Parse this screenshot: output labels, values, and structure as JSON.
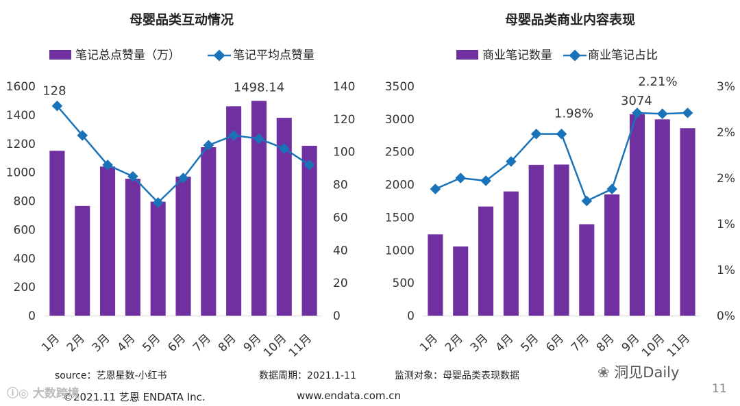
{
  "chart_data": [
    {
      "type": "bar+line",
      "title": "母婴品类互动情况",
      "categories": [
        "1月",
        "2月",
        "3月",
        "4月",
        "5月",
        "6月",
        "7月",
        "8月",
        "9月",
        "10月",
        "11月"
      ],
      "series": [
        {
          "name": "笔记总点赞量（万）",
          "kind": "bar",
          "axis": "left",
          "values": [
            1150,
            765,
            1040,
            955,
            795,
            970,
            1175,
            1460,
            1498.14,
            1380,
            1185
          ]
        },
        {
          "name": "笔记平均点赞量",
          "kind": "line",
          "axis": "right",
          "values": [
            128,
            110,
            92,
            85,
            69,
            84,
            104,
            110,
            108,
            102,
            92
          ]
        }
      ],
      "ylim_left": [
        0,
        1600
      ],
      "yticks_left": [
        "0",
        "200",
        "400",
        "600",
        "800",
        "1000",
        "1200",
        "1400",
        "1600"
      ],
      "ylim_right": [
        0,
        140
      ],
      "yticks_right": [
        "0",
        "20",
        "40",
        "60",
        "80",
        "100",
        "120",
        "140"
      ],
      "annotations": [
        {
          "series": 1,
          "index": 0,
          "label": "128"
        },
        {
          "series": 0,
          "index": 8,
          "label": "1498.14"
        }
      ],
      "legend": "top"
    },
    {
      "type": "bar+line",
      "title": "母婴品类商业内容表现",
      "categories": [
        "1月",
        "2月",
        "3月",
        "4月",
        "5月",
        "6月",
        "7月",
        "8月",
        "9月",
        "10月",
        "11月"
      ],
      "series": [
        {
          "name": "商业笔记数量",
          "kind": "bar",
          "axis": "left",
          "values": [
            1240,
            1055,
            1665,
            1895,
            2300,
            2305,
            1395,
            1850,
            3074,
            2995,
            2860
          ]
        },
        {
          "name": "商业笔记占比",
          "kind": "line",
          "axis": "right",
          "values": [
            1.38,
            1.5,
            1.47,
            1.68,
            1.98,
            1.98,
            1.25,
            1.38,
            2.21,
            2.2,
            2.21
          ]
        }
      ],
      "ylim_left": [
        0,
        3500
      ],
      "yticks_left": [
        "0",
        "500",
        "1000",
        "1500",
        "2000",
        "2500",
        "3000",
        "3500"
      ],
      "ylim_right": [
        0,
        2.5
      ],
      "yticks_right": [
        "0%",
        "1%",
        "1%",
        "2%",
        "2%",
        "3%"
      ],
      "annotations": [
        {
          "series": 1,
          "index": 5,
          "label": "1.98%"
        },
        {
          "series": 0,
          "index": 8,
          "label": "3074"
        },
        {
          "series": 1,
          "index": 8,
          "label": "2.21%"
        }
      ],
      "legend": "top"
    }
  ],
  "colors": {
    "bar": "#7030a0",
    "line": "#1a73b8",
    "axis": "#d9d9d9"
  },
  "footer": {
    "source": "source：艺恩星数-小红书",
    "period": "数据周期：2021.1-11",
    "target": "监测对象：母婴品类表现数据",
    "copyright": "©2021.11 艺恩 ENDATA Inc.",
    "url": "www.endata.com.cn",
    "page_number": "11"
  },
  "watermarks": {
    "left": "大数跨境",
    "right": "洞见Daily"
  }
}
